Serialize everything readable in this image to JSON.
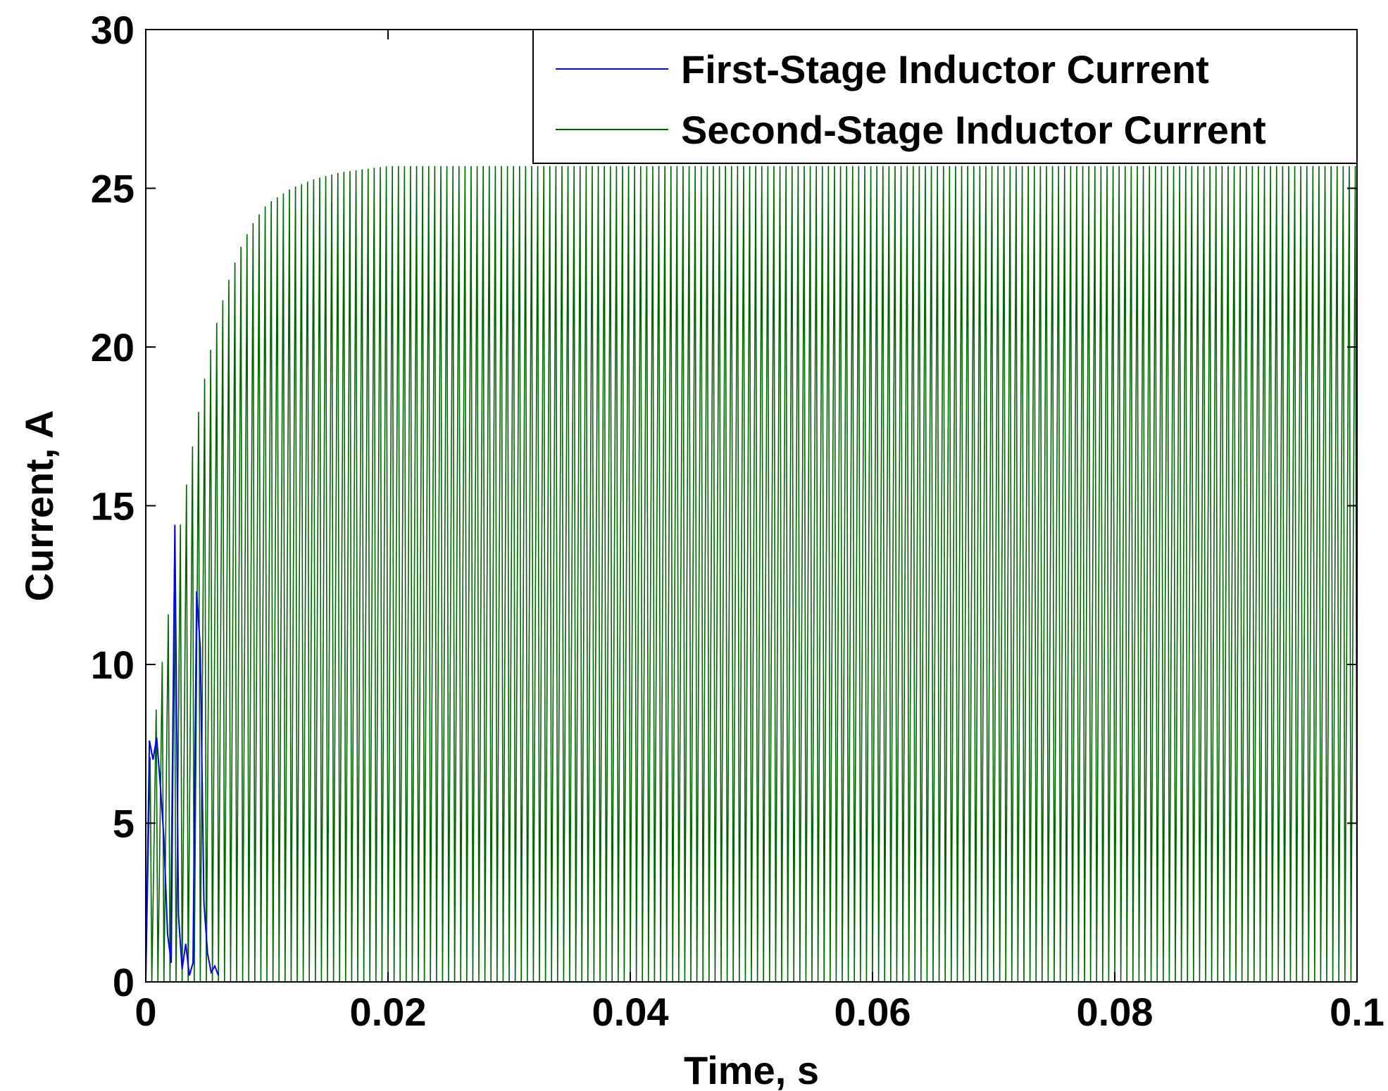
{
  "chart_data": {
    "type": "line",
    "title": "",
    "xlabel": "Time, s",
    "ylabel": "Current, A",
    "xlim": [
      0,
      0.1
    ],
    "ylim": [
      0,
      30
    ],
    "xticks": [
      0,
      0.02,
      0.04,
      0.06,
      0.08,
      0.1
    ],
    "xtick_labels": [
      "0",
      "0.02",
      "0.04",
      "0.06",
      "0.08",
      "0.1"
    ],
    "yticks": [
      0,
      5,
      10,
      15,
      20,
      25,
      30
    ],
    "ytick_labels": [
      "0",
      "5",
      "10",
      "15",
      "20",
      "25",
      "30"
    ],
    "grid": false,
    "legend_position": "top-right",
    "series": [
      {
        "name": "First-Stage Inductor Current",
        "color": "#0000ff",
        "description_points": {
          "t": [
            0.0,
            0.0003,
            0.0006,
            0.0009,
            0.0012,
            0.0015,
            0.0018,
            0.0021,
            0.0024,
            0.0027,
            0.003,
            0.0033,
            0.0036,
            0.0039,
            0.0042,
            0.0045,
            0.0048,
            0.0051,
            0.0054,
            0.0057,
            0.006
          ],
          "i": [
            0.0,
            7.6,
            7.0,
            7.7,
            6.2,
            4.5,
            1.5,
            0.6,
            14.4,
            2.1,
            0.4,
            1.2,
            0.2,
            0.6,
            12.3,
            10.5,
            2.5,
            0.9,
            0.3,
            0.5,
            0.2
          ]
        }
      },
      {
        "name": "Second-Stage Inductor Current",
        "color": "#006400",
        "steady_state_peak": 25.7,
        "steady_state_min": 0,
        "envelope": {
          "t": [
            0.0,
            0.001,
            0.002,
            0.003,
            0.004,
            0.005,
            0.006,
            0.007,
            0.008,
            0.009,
            0.01,
            0.012,
            0.014,
            0.016,
            0.018,
            0.02,
            0.025,
            0.03,
            0.1
          ],
          "peak": [
            6.0,
            9.0,
            12.0,
            14.8,
            17.2,
            19.3,
            21.0,
            22.3,
            23.3,
            24.0,
            24.5,
            25.0,
            25.3,
            25.5,
            25.6,
            25.7,
            25.7,
            25.7,
            25.7
          ]
        },
        "switching_pulses_per_0_02s": 40
      }
    ]
  }
}
